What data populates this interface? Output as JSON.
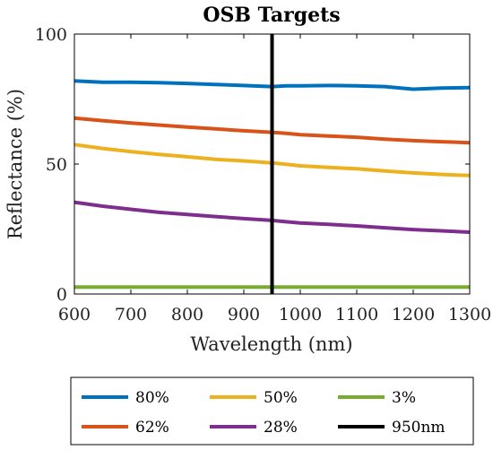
{
  "chart_data": {
    "type": "line",
    "title": "OSB Targets",
    "xlabel": "Wavelength (nm)",
    "ylabel": "Reflectance (%)",
    "xlim": [
      600,
      1300
    ],
    "ylim": [
      0,
      100
    ],
    "xticks": [
      "600",
      "700",
      "800",
      "900",
      "1000",
      "1100",
      "1200",
      "1300"
    ],
    "yticks": [
      "0",
      "50",
      "100"
    ],
    "grid": false,
    "legend_position": "bottom",
    "x": [
      600,
      650,
      700,
      750,
      800,
      850,
      900,
      950,
      975,
      1000,
      1050,
      1100,
      1150,
      1200,
      1250,
      1300
    ],
    "series": [
      {
        "name": "80%",
        "color": "#0072BD",
        "values": [
          82,
          81.5,
          81.5,
          81.3,
          81,
          80.6,
          80.2,
          79.8,
          80.1,
          80.1,
          80.2,
          80.1,
          79.8,
          78.8,
          79.2,
          79.4
        ]
      },
      {
        "name": "62%",
        "color": "#D95319",
        "values": [
          67.7,
          66.7,
          65.8,
          65,
          64.2,
          63.5,
          62.8,
          62.2,
          61.8,
          61.3,
          60.8,
          60.3,
          59.6,
          59,
          58.6,
          58.2
        ]
      },
      {
        "name": "50%",
        "color": "#EDB120",
        "values": [
          57.5,
          56,
          54.8,
          53.7,
          52.8,
          51.8,
          51.2,
          50.4,
          49.9,
          49.3,
          48.7,
          48.2,
          47.3,
          46.6,
          46,
          45.6
        ]
      },
      {
        "name": "28%",
        "color": "#7E2F8E",
        "values": [
          35.3,
          33.8,
          32.6,
          31.4,
          30.6,
          29.8,
          29,
          28.3,
          27.8,
          27.3,
          26.8,
          26.2,
          25.5,
          24.8,
          24.3,
          23.8
        ]
      },
      {
        "name": "3%",
        "color": "#77AC30",
        "values": [
          2.7,
          2.7,
          2.7,
          2.7,
          2.7,
          2.7,
          2.7,
          2.7,
          2.7,
          2.7,
          2.7,
          2.7,
          2.7,
          2.7,
          2.7,
          2.7
        ]
      }
    ],
    "vline": {
      "name": "950nm",
      "color": "#000000",
      "x": 950
    },
    "legend_order": [
      "80%",
      "50%",
      "3%",
      "62%",
      "28%",
      "950nm"
    ]
  }
}
